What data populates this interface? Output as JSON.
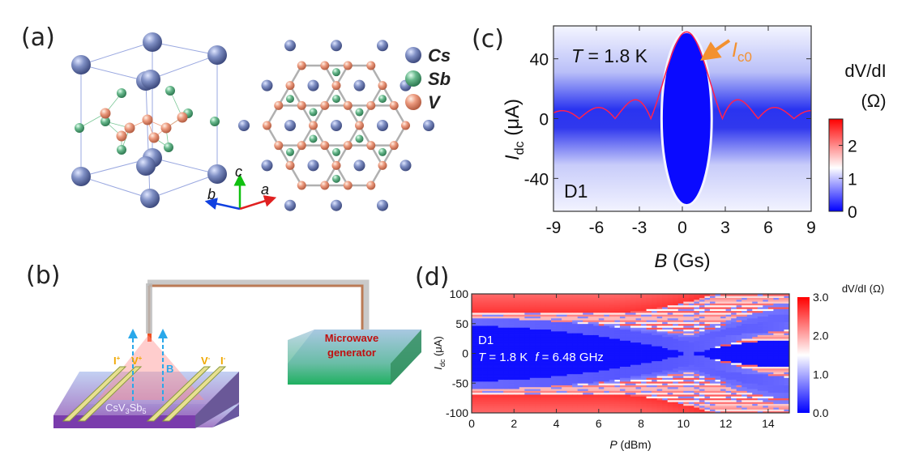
{
  "panels": {
    "a": {
      "label": "(a)",
      "legend": [
        {
          "name": "Cs",
          "color": "#6f7fb5"
        },
        {
          "name": "Sb",
          "color": "#5fae84"
        },
        {
          "name": "V",
          "color": "#e8957a"
        }
      ],
      "axes": {
        "c": "c",
        "b": "b",
        "a": "a"
      }
    },
    "b": {
      "label": "(b)",
      "sample": {
        "base": "CsV",
        "sub1": "3",
        "mid": "Sb",
        "sub2": "5"
      },
      "contacts": [
        {
          "name": "I",
          "sup": "+"
        },
        {
          "name": "V",
          "sup": "+"
        },
        {
          "name": "V",
          "sup": "-"
        },
        {
          "name": "I",
          "sup": "-"
        }
      ],
      "field_label": "B",
      "generator": {
        "line1": "Microwave",
        "line2": "generator"
      }
    },
    "c": {
      "label": "(c)"
    },
    "d": {
      "label": "(d)"
    }
  },
  "chart_data": [
    {
      "type": "heatmap",
      "panel": "c",
      "xlabel": {
        "var": "B",
        "unit": " (Gs)"
      },
      "ylabel": {
        "var": "I",
        "sub": "dc",
        "unit": " (μA)"
      },
      "xlim": [
        -9,
        9
      ],
      "ylim": [
        -62,
        62
      ],
      "xticks": [
        "-9",
        "-6",
        "-3",
        "0",
        "3",
        "6",
        "9"
      ],
      "xtick_values": [
        -9,
        -6,
        -3,
        0,
        3,
        6,
        9
      ],
      "yticks": [
        "40",
        "0",
        "-40"
      ],
      "ytick_values": [
        40,
        0,
        -40
      ],
      "annotations": {
        "temp_var": "T",
        "temp_val": " = 1.8 K",
        "device": "D1",
        "curve_var": "I",
        "curve_sub": "c0"
      },
      "colorbar": {
        "title_a": "dV/dI",
        "title_b": "(Ω)",
        "ticks": [
          "0",
          "1",
          "2"
        ],
        "tick_values": [
          0,
          1,
          2
        ],
        "range": [
          0,
          2.8
        ]
      },
      "ic0_curve": {
        "peak_uA": 58,
        "center_Gs": 0.3,
        "period_Gs": 2.5,
        "zeros_Gs": [
          -7.3,
          -4.8,
          -2.2,
          2.8,
          5.3,
          7.8
        ]
      },
      "colors": {
        "low": "#0000ff",
        "mid": "#ffffff",
        "high": "#ff0000",
        "curve": "#ff2040",
        "arrow": "#f39130"
      }
    },
    {
      "type": "heatmap",
      "panel": "d",
      "xlabel": {
        "var": "P",
        "unit": " (dBm)"
      },
      "ylabel": {
        "var": "I",
        "sub": "dc",
        "unit": " (μA)"
      },
      "xlim": [
        0,
        15
      ],
      "ylim": [
        -100,
        100
      ],
      "xticks": [
        "0",
        "2",
        "4",
        "6",
        "8",
        "10",
        "12",
        "14"
      ],
      "xtick_values": [
        0,
        2,
        4,
        6,
        8,
        10,
        12,
        14
      ],
      "yticks": [
        "100",
        "50",
        "0",
        "-50",
        "-100"
      ],
      "ytick_values": [
        100,
        50,
        0,
        -50,
        -100
      ],
      "annotations": {
        "device": "D1",
        "temp_var": "T",
        "temp_val": " = 1.8 K",
        "freq_var": "f",
        "freq_val": " = 6.48 GHz"
      },
      "colorbar": {
        "title": "dV/dI (Ω)",
        "ticks": [
          "3.0",
          "2.0",
          "1.0",
          "0.0"
        ],
        "tick_values": [
          3,
          2,
          1,
          0
        ],
        "range": [
          0,
          3
        ]
      },
      "critical_current_uA": 55,
      "ic_zero_power_dBm": 10.3
    }
  ]
}
